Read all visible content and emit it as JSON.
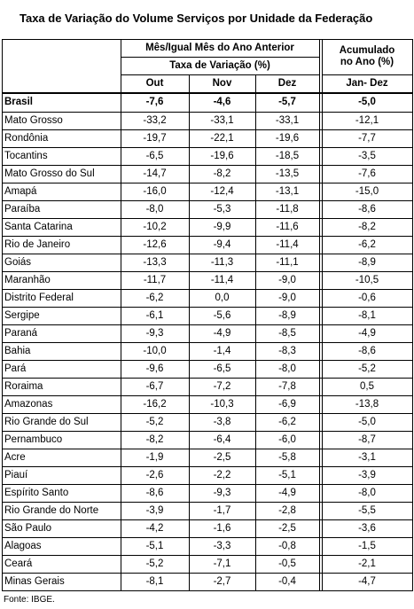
{
  "title": "Taxa de Variação do Volume Serviços por Unidade da Federação",
  "table": {
    "header": {
      "group": "Mês/Igual Mês do Ano Anterior",
      "subgroup": "Taxa de Variação (%)",
      "columns": [
        "Out",
        "Nov",
        "Dez"
      ],
      "cumulative": "Acumulado no Ano (%)",
      "cumulative_period": "Jan- Dez"
    },
    "rows": [
      [
        "Brasil",
        "-7,6",
        "-4,6",
        "-5,7",
        "-5,0"
      ],
      [
        "Mato Grosso",
        "-33,2",
        "-33,1",
        "-33,1",
        "-12,1"
      ],
      [
        "Rondônia",
        "-19,7",
        "-22,1",
        "-19,6",
        "-7,7"
      ],
      [
        "Tocantins",
        "-6,5",
        "-19,6",
        "-18,5",
        "-3,5"
      ],
      [
        "Mato Grosso do Sul",
        "-14,7",
        "-8,2",
        "-13,5",
        "-7,6"
      ],
      [
        "Amapá",
        "-16,0",
        "-12,4",
        "-13,1",
        "-15,0"
      ],
      [
        "Paraíba",
        "-8,0",
        "-5,3",
        "-11,8",
        "-8,6"
      ],
      [
        "Santa Catarina",
        "-10,2",
        "-9,9",
        "-11,6",
        "-8,2"
      ],
      [
        "Rio de Janeiro",
        "-12,6",
        "-9,4",
        "-11,4",
        "-6,2"
      ],
      [
        "Goiás",
        "-13,3",
        "-11,3",
        "-11,1",
        "-8,9"
      ],
      [
        "Maranhão",
        "-11,7",
        "-11,4",
        "-9,0",
        "-10,5"
      ],
      [
        "Distrito Federal",
        "-6,2",
        "0,0",
        "-9,0",
        "-0,6"
      ],
      [
        "Sergipe",
        "-6,1",
        "-5,6",
        "-8,9",
        "-8,1"
      ],
      [
        "Paraná",
        "-9,3",
        "-4,9",
        "-8,5",
        "-4,9"
      ],
      [
        "Bahia",
        "-10,0",
        "-1,4",
        "-8,3",
        "-8,6"
      ],
      [
        "Pará",
        "-9,6",
        "-6,5",
        "-8,0",
        "-5,2"
      ],
      [
        "Roraima",
        "-6,7",
        "-7,2",
        "-7,8",
        "0,5"
      ],
      [
        "Amazonas",
        "-16,2",
        "-10,3",
        "-6,9",
        "-13,8"
      ],
      [
        "Rio Grande do Sul",
        "-5,2",
        "-3,8",
        "-6,2",
        "-5,0"
      ],
      [
        "Pernambuco",
        "-8,2",
        "-6,4",
        "-6,0",
        "-8,7"
      ],
      [
        "Acre",
        "-1,9",
        "-2,5",
        "-5,8",
        "-3,1"
      ],
      [
        "Piauí",
        "-2,6",
        "-2,2",
        "-5,1",
        "-3,9"
      ],
      [
        "Espírito Santo",
        "-8,6",
        "-9,3",
        "-4,9",
        "-8,0"
      ],
      [
        "Rio Grande do Norte",
        "-3,9",
        "-1,7",
        "-2,8",
        "-5,5"
      ],
      [
        "São Paulo",
        "-4,2",
        "-1,6",
        "-2,5",
        "-3,6"
      ],
      [
        "Alagoas",
        "-5,1",
        "-3,3",
        "-0,8",
        "-1,5"
      ],
      [
        "Ceará",
        "-5,2",
        "-7,1",
        "-0,5",
        "-2,1"
      ],
      [
        "Minas Gerais",
        "-8,1",
        "-2,7",
        "-0,4",
        "-4,7"
      ]
    ]
  },
  "source": "Fonte: IBGE."
}
